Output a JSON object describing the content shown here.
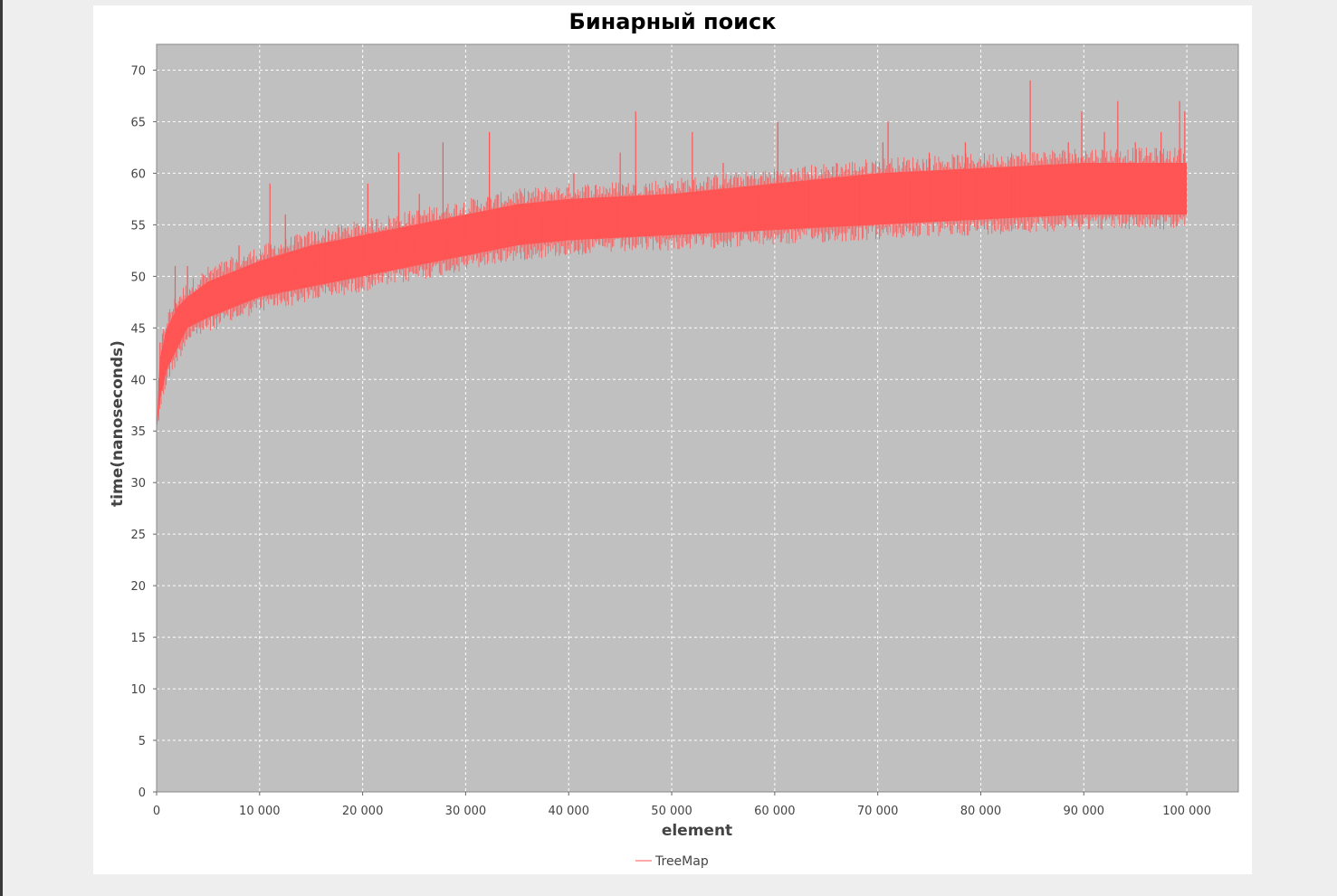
{
  "colors": {
    "window_background": "#eeeeee",
    "panel_background": "#ffffff",
    "plot_background": "#c0c0c0",
    "gridline": "#ffffff",
    "series": "#ff5555",
    "text": "#444444"
  },
  "chart_data": {
    "type": "line",
    "title": "Бинарный поиск",
    "xlabel": "element",
    "ylabel": "time(nanoseconds)",
    "xlim": [
      0,
      105000
    ],
    "ylim": [
      0,
      72.5
    ],
    "x_ticks": [
      0,
      10000,
      20000,
      30000,
      40000,
      50000,
      60000,
      70000,
      80000,
      90000,
      100000
    ],
    "x_tick_labels": [
      "0",
      "10 000",
      "20 000",
      "30 000",
      "40 000",
      "50 000",
      "60 000",
      "70 000",
      "80 000",
      "90 000",
      "100 000"
    ],
    "y_ticks": [
      0,
      5,
      10,
      15,
      20,
      25,
      30,
      35,
      40,
      45,
      50,
      55,
      60,
      65,
      70
    ],
    "y_tick_labels": [
      "0",
      "5",
      "10",
      "15",
      "20",
      "25",
      "30",
      "35",
      "40",
      "45",
      "50",
      "55",
      "60",
      "65",
      "70"
    ],
    "grid": true,
    "legend_position": "bottom-center",
    "series": [
      {
        "name": "TreeMap",
        "color": "#ff5555",
        "band": {
          "x": [
            0,
            300,
            1000,
            2000,
            3000,
            5000,
            7500,
            10000,
            15000,
            20000,
            25000,
            30000,
            35000,
            40000,
            50000,
            60000,
            70000,
            80000,
            90000,
            100000
          ],
          "lower": [
            35,
            38,
            41,
            43,
            45,
            46,
            47,
            48,
            49,
            50,
            51,
            52,
            53,
            53.5,
            54,
            54.5,
            55,
            55.5,
            56,
            56
          ],
          "upper": [
            35,
            42,
            45,
            47,
            48,
            49.5,
            50.5,
            51.5,
            53,
            54,
            55,
            56,
            57,
            57.5,
            58,
            59,
            60,
            60.5,
            61,
            61
          ]
        },
        "spikes": [
          {
            "x": 1800,
            "y": 51
          },
          {
            "x": 3000,
            "y": 51
          },
          {
            "x": 8000,
            "y": 53
          },
          {
            "x": 11000,
            "y": 59
          },
          {
            "x": 12500,
            "y": 56
          },
          {
            "x": 20500,
            "y": 59
          },
          {
            "x": 23500,
            "y": 58
          },
          {
            "x": 23500,
            "y": 62
          },
          {
            "x": 25500,
            "y": 58
          },
          {
            "x": 27800,
            "y": 63
          },
          {
            "x": 32300,
            "y": 64
          },
          {
            "x": 40500,
            "y": 60
          },
          {
            "x": 45000,
            "y": 62
          },
          {
            "x": 46500,
            "y": 66
          },
          {
            "x": 52000,
            "y": 64
          },
          {
            "x": 55000,
            "y": 61
          },
          {
            "x": 60300,
            "y": 65
          },
          {
            "x": 66000,
            "y": 61
          },
          {
            "x": 70500,
            "y": 63
          },
          {
            "x": 71000,
            "y": 65
          },
          {
            "x": 75000,
            "y": 62
          },
          {
            "x": 78500,
            "y": 63
          },
          {
            "x": 84800,
            "y": 69
          },
          {
            "x": 88500,
            "y": 63
          },
          {
            "x": 89800,
            "y": 66
          },
          {
            "x": 92000,
            "y": 64
          },
          {
            "x": 93300,
            "y": 67
          },
          {
            "x": 95000,
            "y": 63
          },
          {
            "x": 97500,
            "y": 64
          },
          {
            "x": 99300,
            "y": 67
          },
          {
            "x": 99800,
            "y": 66
          }
        ]
      }
    ]
  }
}
